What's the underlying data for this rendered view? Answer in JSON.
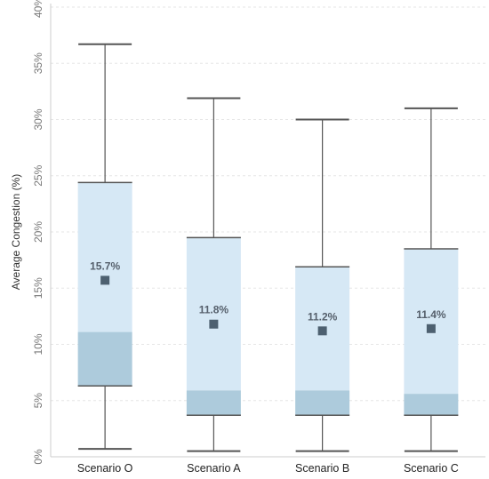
{
  "chart_data": {
    "type": "box",
    "title": "",
    "xlabel": "",
    "ylabel": "Average Congestion (%)",
    "ylim": [
      0,
      40
    ],
    "yticks": [
      0,
      5,
      10,
      15,
      20,
      25,
      30,
      35,
      40
    ],
    "ytick_labels": [
      "0%",
      "5%",
      "10%",
      "15%",
      "20%",
      "25%",
      "30%",
      "35%",
      "40%"
    ],
    "grid": true,
    "categories": [
      "Scenario O",
      "Scenario A",
      "Scenario B",
      "Scenario C"
    ],
    "boxes": [
      {
        "min": 0.7,
        "q1": 6.3,
        "median": 11.1,
        "q3": 24.4,
        "max": 36.7,
        "mean": 15.7,
        "mean_label": "15.7%"
      },
      {
        "min": 0.5,
        "q1": 3.7,
        "median": 5.9,
        "q3": 19.5,
        "max": 31.9,
        "mean": 11.8,
        "mean_label": "11.8%"
      },
      {
        "min": 0.5,
        "q1": 3.7,
        "median": 5.9,
        "q3": 16.9,
        "max": 30.0,
        "mean": 11.2,
        "mean_label": "11.2%"
      },
      {
        "min": 0.5,
        "q1": 3.7,
        "median": 5.6,
        "q3": 18.5,
        "max": 31.0,
        "mean": 11.4,
        "mean_label": "11.4%"
      }
    ],
    "colors": {
      "upper_box": "#d6e8f5",
      "lower_box": "#adcbdc",
      "box_edge": "#9bbfd6",
      "whisker": "#555555",
      "mean_marker": "#4d6070",
      "grid": "#e6e6e6",
      "axis": "#cccccc"
    }
  }
}
